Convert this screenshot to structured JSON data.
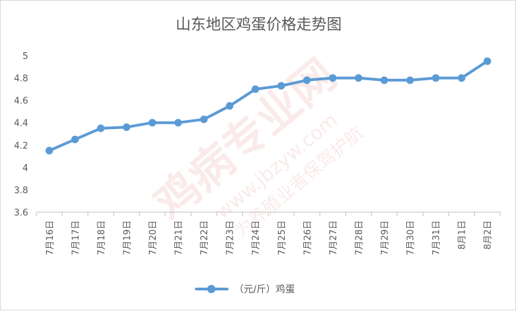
{
  "chart_data": {
    "type": "line",
    "title": "山东地区鸡蛋价格走势图",
    "categories": [
      "7月16日",
      "7月17日",
      "7月18日",
      "7月19日",
      "7月20日",
      "7月21日",
      "7月22日",
      "7月23日",
      "7月24日",
      "7月25日",
      "7月26日",
      "7月27日",
      "7月28日",
      "7月29日",
      "7月30日",
      "7月31日",
      "8月1日",
      "8月2日"
    ],
    "series": [
      {
        "name": "（元/斤）鸡蛋",
        "values": [
          4.15,
          4.25,
          4.35,
          4.36,
          4.4,
          4.4,
          4.43,
          4.55,
          4.7,
          4.73,
          4.78,
          4.8,
          4.8,
          4.78,
          4.78,
          4.8,
          4.8,
          4.95
        ]
      }
    ],
    "ylim": [
      3.6,
      5.0
    ],
    "yticks": [
      "3.6",
      "3.8",
      "4",
      "4.2",
      "4.4",
      "4.6",
      "4.8",
      "5"
    ],
    "grid": false,
    "legend_position": "bottom",
    "colors": {
      "series": "#5b9bd5",
      "axis": "#bfbfbf",
      "text": "#595959",
      "watermark": "#e06666"
    },
    "watermark": {
      "main": "鸡病专业网",
      "url": "www.jbzyw.com",
      "sub": "为养殖业者保驾护航"
    }
  }
}
